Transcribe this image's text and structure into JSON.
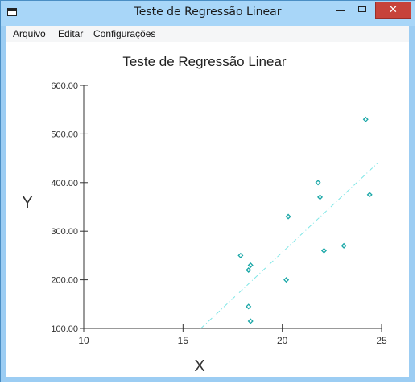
{
  "window": {
    "title": "Teste de Regressão Linear",
    "close_glyph": "✕"
  },
  "menu": {
    "items": [
      "Arquivo",
      "Editar",
      "Configurações"
    ]
  },
  "chart_data": {
    "type": "scatter",
    "title": "Teste de Regressão Linear",
    "xlabel": "X",
    "ylabel": "Y",
    "xlim": [
      10,
      25
    ],
    "ylim": [
      100,
      600
    ],
    "x_ticks": [
      "10",
      "15",
      "20",
      "25"
    ],
    "y_ticks": [
      "100.00",
      "200.00",
      "300.00",
      "400.00",
      "500.00",
      "600.00"
    ],
    "grid": false,
    "points": [
      {
        "x": 17.9,
        "y": 250
      },
      {
        "x": 18.3,
        "y": 145
      },
      {
        "x": 18.3,
        "y": 220
      },
      {
        "x": 18.4,
        "y": 230
      },
      {
        "x": 18.4,
        "y": 115
      },
      {
        "x": 20.2,
        "y": 200
      },
      {
        "x": 20.3,
        "y": 330
      },
      {
        "x": 21.8,
        "y": 400
      },
      {
        "x": 21.9,
        "y": 370
      },
      {
        "x": 22.1,
        "y": 260
      },
      {
        "x": 23.1,
        "y": 270
      },
      {
        "x": 24.2,
        "y": 530
      },
      {
        "x": 24.4,
        "y": 375
      }
    ],
    "regression_line": {
      "x": [
        15.9,
        24.8
      ],
      "y": [
        100,
        440
      ]
    },
    "colors": {
      "points": "#1aa7a7",
      "line": "#7fe6e6",
      "axis": "#333333"
    }
  }
}
